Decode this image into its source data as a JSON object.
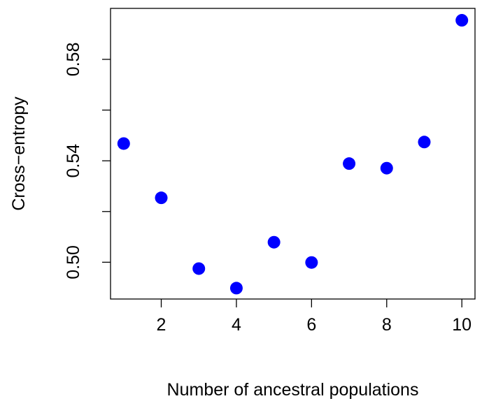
{
  "chart_data": {
    "type": "scatter",
    "title": "",
    "xlabel": "Number of ancestral populations",
    "ylabel": "Cross−entropy",
    "xlim": [
      0.65,
      10.35
    ],
    "ylim": [
      0.4855,
      0.6001
    ],
    "x_ticks": [
      2,
      4,
      6,
      8,
      10
    ],
    "x_tick_labels": [
      "2",
      "4",
      "6",
      "8",
      "10"
    ],
    "y_ticks": [
      0.5,
      0.52,
      0.54,
      0.56,
      0.58
    ],
    "y_tick_labels": [
      "0.50",
      "",
      "0.54",
      "",
      "0.58"
    ],
    "grid": false,
    "legend": "none",
    "point_color": "#0000ff",
    "series": [
      {
        "x": [
          1,
          2,
          3,
          4,
          5,
          6,
          7,
          8,
          9,
          10
        ],
        "y": [
          0.5468,
          0.5254,
          0.4975,
          0.4898,
          0.5079,
          0.4999,
          0.5389,
          0.5371,
          0.5474,
          0.5954
        ]
      }
    ]
  }
}
